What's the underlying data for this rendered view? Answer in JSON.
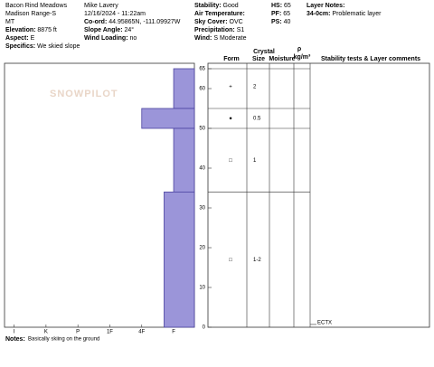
{
  "header": {
    "columns": [
      [
        {
          "value": "Bacon Rind Meadows"
        },
        {
          "value": "Madison Range-S"
        },
        {
          "value": "MT"
        },
        {
          "label": "Elevation:",
          "value": "8875 ft"
        },
        {
          "label": "Aspect:",
          "value": "E"
        },
        {
          "label": "Specifics:",
          "value": "We skied slope"
        }
      ],
      [
        {
          "value": "Mike Lavery"
        },
        {
          "value": "12/16/2024 - 11:22am"
        },
        {
          "label": "Co-ord:",
          "value": "44.95865N, -111.09927W"
        },
        {
          "label": "Slope Angle:",
          "value": "24°"
        },
        {
          "label": "Wind Loading:",
          "value": "no"
        }
      ],
      [
        {
          "label": "Stability:",
          "value": "Good"
        },
        {
          "label": "Air Temperature:"
        },
        {
          "label": "Sky Cover:",
          "value": "OVC"
        },
        {
          "label": "Precipitation:",
          "value": "S1"
        },
        {
          "label": "Wind:",
          "value": "S Moderate"
        }
      ],
      [
        {
          "label": "HS:",
          "value": "65"
        },
        {
          "label": "PF:",
          "value": "65"
        },
        {
          "label": "PS:",
          "value": "40"
        }
      ],
      [
        {
          "label": "Layer Notes:"
        },
        {
          "label": "34-0cm:",
          "value": "Problematic layer"
        }
      ]
    ]
  },
  "watermark": "SNOWPILOT",
  "chart_data": {
    "type": "hardness-profile",
    "color": "#9b95d9",
    "ylim": [
      0,
      65
    ],
    "yticks": [
      0,
      10,
      20,
      30,
      40,
      50,
      60,
      65
    ],
    "xlim": [
      6.3,
      0.35
    ],
    "xticks": [
      {
        "value": 6,
        "label": "I"
      },
      {
        "value": 5,
        "label": "K"
      },
      {
        "value": 4,
        "label": "P"
      },
      {
        "value": 3,
        "label": "1F"
      },
      {
        "value": 2,
        "label": "4F"
      },
      {
        "value": 1,
        "label": "F"
      }
    ],
    "layers": {
      "top": [
        65,
        55,
        50,
        34
      ],
      "bottom": [
        55,
        50,
        34,
        0
      ],
      "values": [
        1,
        2,
        1,
        1.3
      ]
    }
  },
  "table": {
    "headers": {
      "crystal": "Crystal",
      "form": "Form",
      "size": "Size",
      "moisture": "Moisture",
      "rho": "ρ",
      "rho_unit": "kg/m³",
      "comments": "Stability tests & Layer comments"
    },
    "grains": [
      {
        "depth": 60.5,
        "form": "+",
        "size": "2"
      },
      {
        "depth": 52.5,
        "form": "●",
        "size": "0.5"
      },
      {
        "depth": 42,
        "form": "□",
        "size": "1"
      },
      {
        "depth": 17,
        "form": "□",
        "size": "1-2"
      }
    ],
    "tests": [
      {
        "depth": 0.7,
        "label": "ECTX"
      }
    ]
  },
  "notes": {
    "label": "Notes:",
    "value": "Basically skiing on the ground"
  }
}
